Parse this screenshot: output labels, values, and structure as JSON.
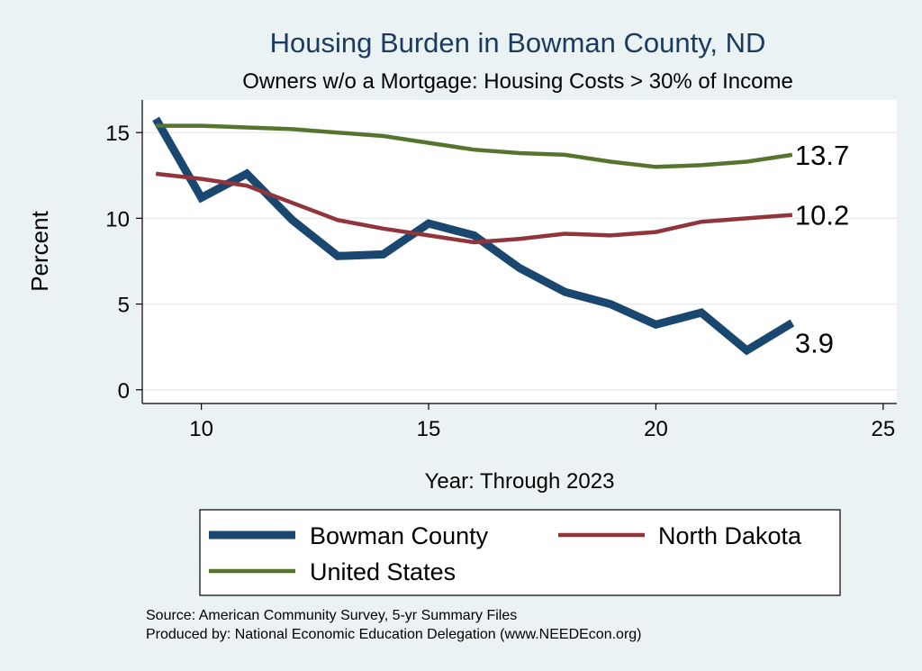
{
  "chart_data": {
    "type": "line",
    "title": "Housing Burden in Bowman County, ND",
    "subtitle": "Owners w/o a Mortgage: Housing Costs > 30% of Income",
    "xlabel": "Year: Through 2023",
    "ylabel": "Percent",
    "xlim": [
      8.7,
      25.3
    ],
    "ylim": [
      -0.8,
      16.9
    ],
    "xticks": [
      10,
      15,
      20,
      25
    ],
    "yticks": [
      0,
      5,
      10,
      15
    ],
    "grid": true,
    "legend_position": "bottom",
    "x": [
      9,
      10,
      11,
      12,
      13,
      14,
      15,
      16,
      17,
      18,
      19,
      20,
      21,
      22,
      23
    ],
    "series": [
      {
        "name": "Bowman County",
        "color": "#1a476f",
        "values": [
          15.8,
          11.2,
          12.6,
          9.9,
          7.8,
          7.9,
          9.7,
          9.0,
          7.1,
          5.7,
          5.0,
          3.8,
          4.5,
          2.3,
          3.9
        ],
        "end_label": "3.9"
      },
      {
        "name": "North Dakota",
        "color": "#90353b",
        "values": [
          12.6,
          12.3,
          11.9,
          10.9,
          9.9,
          9.4,
          9.0,
          8.6,
          8.8,
          9.1,
          9.0,
          9.2,
          9.8,
          10.0,
          10.2
        ],
        "end_label": "10.2"
      },
      {
        "name": "United States",
        "color": "#55752f",
        "values": [
          15.4,
          15.4,
          15.3,
          15.2,
          15.0,
          14.8,
          14.4,
          14.0,
          13.8,
          13.7,
          13.3,
          13.0,
          13.1,
          13.3,
          13.7
        ],
        "end_label": "13.7"
      }
    ]
  },
  "footer": {
    "source": "Source: American Community Survey, 5-yr Summary Files",
    "produced_by": "Produced by: National Economic Education Delegation (www.NEEDEcon.org)"
  }
}
